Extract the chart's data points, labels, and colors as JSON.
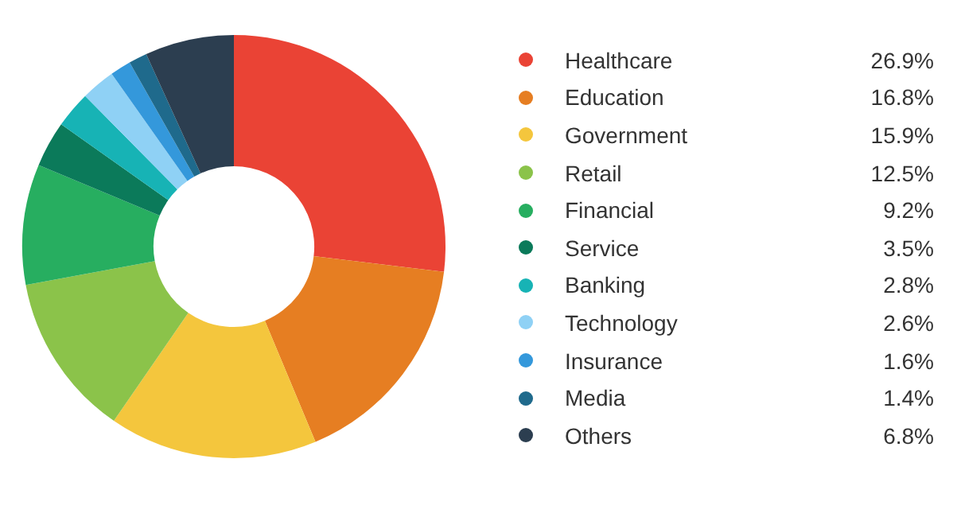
{
  "chart_data": {
    "type": "donut",
    "categories": [
      "Healthcare",
      "Education",
      "Government",
      "Retail",
      "Financial",
      "Service",
      "Banking",
      "Technology",
      "Insurance",
      "Media",
      "Others"
    ],
    "values": [
      26.9,
      16.8,
      15.9,
      12.5,
      9.2,
      3.5,
      2.8,
      2.6,
      1.6,
      1.4,
      6.8
    ],
    "colors": [
      "#ea4335",
      "#e67e22",
      "#f4c63d",
      "#8bc34a",
      "#27ae60",
      "#0b7a5a",
      "#17b3b5",
      "#8fd1f5",
      "#3498db",
      "#1f6a8c",
      "#2c3e50"
    ],
    "value_labels": [
      "26.9%",
      "16.8%",
      "15.9%",
      "12.5%",
      "9.2%",
      "3.5%",
      "2.8%",
      "2.6%",
      "1.6%",
      "1.4%",
      "6.8%"
    ],
    "legend": "right"
  }
}
